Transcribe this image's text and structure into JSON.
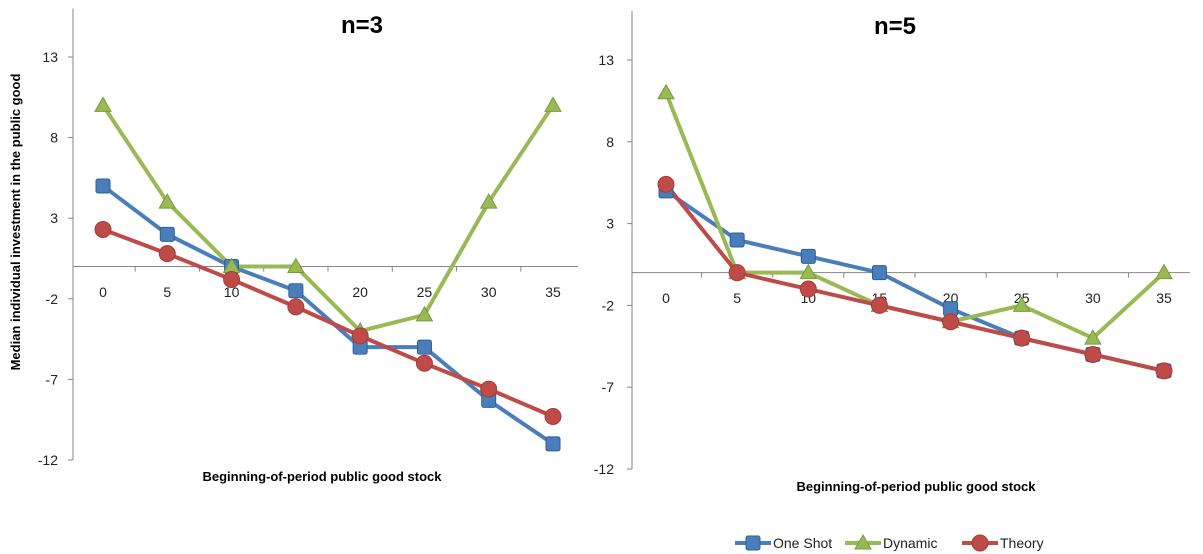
{
  "colors": {
    "one_shot": "#4a7ebb",
    "dynamic": "#98b954",
    "theory": "#be4b48",
    "axis": "#868686"
  },
  "ylabel": "Median individual investment in the public good",
  "legend": [
    "One Shot",
    "Dynamic",
    "Theory"
  ],
  "chart_data": [
    {
      "type": "line",
      "title": "n=3",
      "xlabel": "Beginning-of-period public good stock",
      "ylabel": "Median individual investment in the public good",
      "categories": [
        "0",
        "5",
        "10",
        "15",
        "20",
        "25",
        "30",
        "35"
      ],
      "yticks": [
        "13",
        "8",
        "3",
        "-2",
        "-7",
        "-12"
      ],
      "ylim": [
        -12,
        16
      ],
      "series": [
        {
          "name": "One Shot",
          "values": [
            5,
            2,
            0,
            -1.5,
            -5,
            -5,
            -8.3,
            -11
          ]
        },
        {
          "name": "Dynamic",
          "values": [
            10,
            4,
            0,
            0,
            -4,
            -3,
            4,
            10
          ]
        },
        {
          "name": "Theory",
          "values": [
            2.3,
            0.8,
            -0.8,
            -2.5,
            -4.3,
            -6,
            -7.6,
            -9.3
          ]
        }
      ]
    },
    {
      "type": "line",
      "title": "n=5",
      "xlabel": "Beginning-of-period public good stock",
      "ylabel": "",
      "categories": [
        "0",
        "5",
        "10",
        "15",
        "20",
        "25",
        "30",
        "35"
      ],
      "yticks": [
        "13",
        "8",
        "3",
        "-2",
        "-7",
        "-12"
      ],
      "ylim": [
        -12,
        16
      ],
      "series": [
        {
          "name": "One Shot",
          "values": [
            5,
            2,
            1,
            0,
            -2.2,
            -4,
            -5,
            -6
          ]
        },
        {
          "name": "Dynamic",
          "values": [
            11,
            0,
            0,
            -2,
            -3,
            -2,
            -4,
            0
          ]
        },
        {
          "name": "Theory",
          "values": [
            5.4,
            0,
            -1,
            -2,
            -3,
            -4,
            -5,
            -6
          ]
        }
      ]
    }
  ]
}
